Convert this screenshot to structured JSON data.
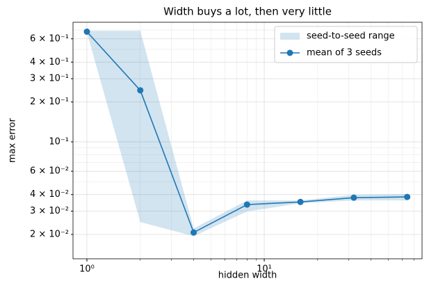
{
  "chart_data": {
    "type": "line",
    "title": "Width buys a lot, then very little",
    "xlabel": "hidden width",
    "ylabel": "max error",
    "x": [
      1,
      2,
      4,
      8,
      16,
      32,
      64
    ],
    "series": [
      {
        "name": "seed-to-seed range",
        "kind": "band",
        "color": "#1f77b4",
        "opacity": 0.2,
        "lower": [
          0.67,
          0.0248,
          0.0194,
          0.0298,
          0.0344,
          0.0361,
          0.0361
        ],
        "upper": [
          0.69,
          0.69,
          0.0222,
          0.0361,
          0.0361,
          0.0398,
          0.0403
        ]
      },
      {
        "name": "mean of 3 seeds",
        "kind": "line",
        "color": "#1f77b4",
        "values": [
          0.679,
          0.245,
          0.0207,
          0.0336,
          0.0352,
          0.0379,
          0.0384
        ]
      }
    ],
    "xscale": "log",
    "yscale": "log",
    "xlim": [
      0.835,
      77.6
    ],
    "ylim": [
      0.0131,
      0.8
    ],
    "xticks": [
      {
        "value": 1,
        "label": "10⁰"
      },
      {
        "value": 10,
        "label": "10¹"
      }
    ],
    "xminorticks": [
      2,
      3,
      4,
      5,
      6,
      7,
      8,
      9,
      20,
      30,
      40,
      50,
      60,
      70
    ],
    "yticks": [
      {
        "value": 0.02,
        "label": "2 × 10⁻²"
      },
      {
        "value": 0.03,
        "label": "3 × 10⁻²"
      },
      {
        "value": 0.04,
        "label": "4 × 10⁻²"
      },
      {
        "value": 0.06,
        "label": "6 × 10⁻²"
      },
      {
        "value": 0.1,
        "label": "10⁻¹"
      },
      {
        "value": 0.2,
        "label": "2 × 10⁻¹"
      },
      {
        "value": 0.3,
        "label": "3 × 10⁻¹"
      },
      {
        "value": 0.4,
        "label": "4 × 10⁻¹"
      },
      {
        "value": 0.6,
        "label": "6 × 10⁻¹"
      }
    ],
    "yminorticks": [
      0.05,
      0.07,
      0.08,
      0.09,
      0.5,
      0.7
    ],
    "grid": true,
    "legend": "upper right"
  }
}
